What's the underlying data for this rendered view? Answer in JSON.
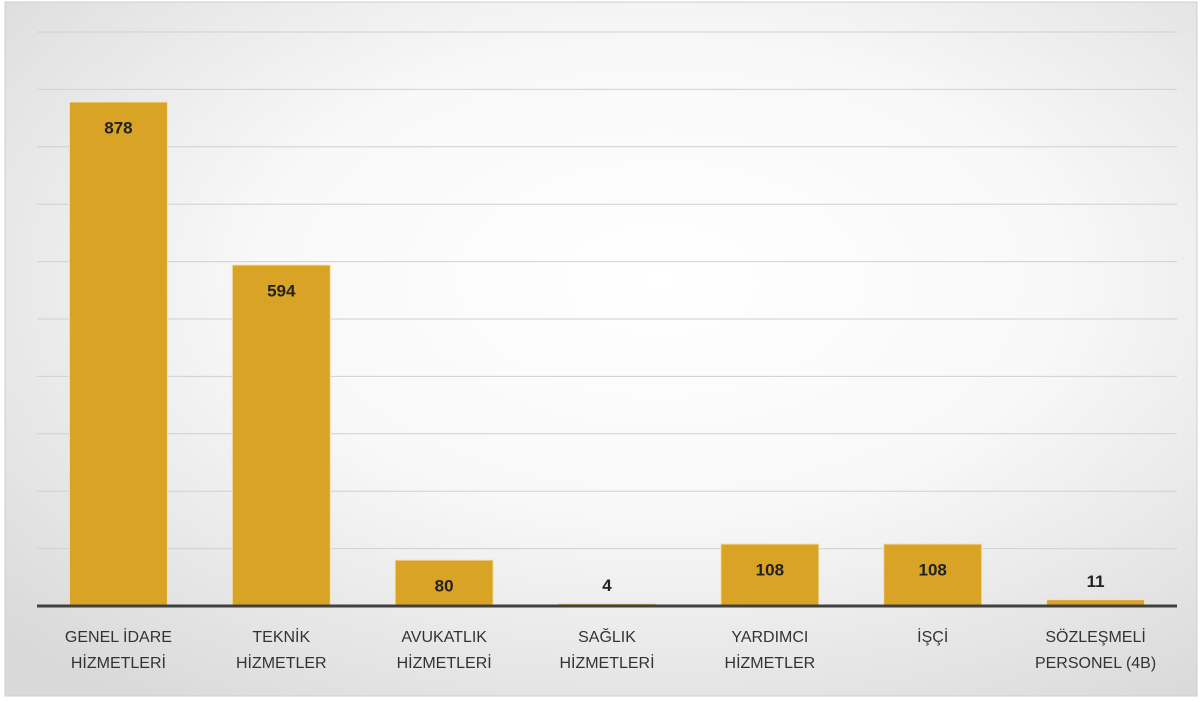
{
  "chart_data": {
    "type": "bar",
    "categories": [
      [
        "GENEL İDARE",
        "HİZMETLERİ"
      ],
      [
        "TEKNİK",
        "HİZMETLER"
      ],
      [
        "AVUKATLIK",
        "HİZMETLERİ"
      ],
      [
        "SAĞLIK",
        "HİZMETLERİ"
      ],
      [
        "YARDIMCI",
        "HİZMETLER"
      ],
      [
        "İŞÇİ"
      ],
      [
        "SÖZLEŞMELİ",
        "PERSONEL (4B)"
      ]
    ],
    "values": [
      878,
      594,
      80,
      4,
      108,
      108,
      11
    ],
    "color": "#d9a326",
    "ylim": [
      0,
      1000
    ],
    "yticks": [
      0,
      100,
      200,
      300,
      400,
      500,
      600,
      700,
      800,
      900,
      1000
    ],
    "grid": true
  }
}
